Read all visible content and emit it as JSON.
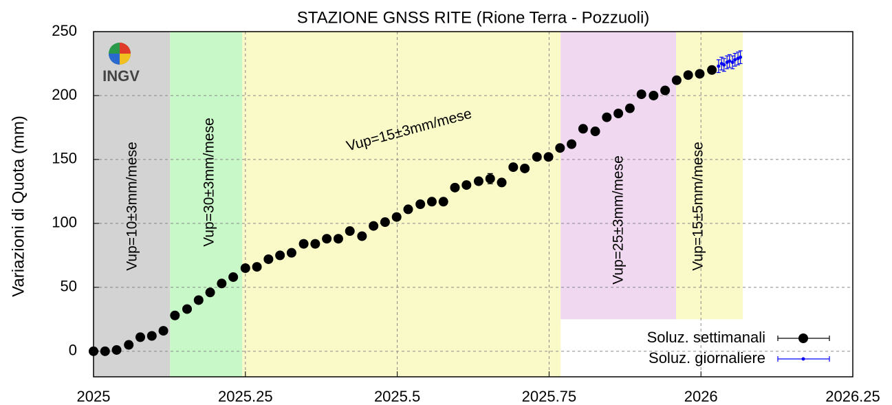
{
  "chart_data": {
    "type": "scatter",
    "title": "STAZIONE GNSS RITE (Rione Terra - Pozzuoli)",
    "y_label": "Variazioni di Quota (mm)",
    "logo_text": "INGV",
    "xlim": [
      2025,
      2026.25
    ],
    "xticks": [
      2025,
      2025.25,
      2025.5,
      2025.75,
      2026,
      2026.25
    ],
    "ylim": [
      -20,
      250
    ],
    "yticks": [
      0,
      50,
      100,
      150,
      200,
      250
    ],
    "grid": true,
    "legend": "lower right",
    "regions": [
      {
        "x": [
          2025,
          2025.126
        ],
        "y": [
          -20,
          250
        ],
        "color": "#d3d3d3"
      },
      {
        "x": [
          2025.126,
          2025.245
        ],
        "y": [
          -20,
          250
        ],
        "color": "#c8f8c8"
      },
      {
        "x": [
          2025.245,
          2025.769
        ],
        "y": [
          -20,
          250
        ],
        "color": "#fafac8"
      },
      {
        "x": [
          2025.769,
          2025.959
        ],
        "y": [
          25,
          250
        ],
        "color": "#f0d8f0"
      },
      {
        "x": [
          2025.959,
          2026.069
        ],
        "y": [
          25,
          250
        ],
        "color": "#fafac8"
      }
    ],
    "annotations": [
      "Vup=10±3mm/mese",
      "Vup=30±3mm/mese",
      "Vup=15±3mm/mese",
      "Vup=25±3mm/mese",
      "Vup=15±5mm/mese"
    ],
    "series": [
      {
        "name": "Soluz. settimanali",
        "color": "#000000",
        "x": [
          2025.0,
          2025.019,
          2025.038,
          2025.058,
          2025.077,
          2025.096,
          2025.115,
          2025.134,
          2025.154,
          2025.173,
          2025.192,
          2025.211,
          2025.23,
          2025.25,
          2025.269,
          2025.288,
          2025.307,
          2025.326,
          2025.346,
          2025.365,
          2025.384,
          2025.403,
          2025.422,
          2025.442,
          2025.461,
          2025.48,
          2025.499,
          2025.518,
          2025.538,
          2025.557,
          2025.576,
          2025.595,
          2025.614,
          2025.634,
          2025.653,
          2025.672,
          2025.691,
          2025.71,
          2025.73,
          2025.749,
          2025.768,
          2025.787,
          2025.806,
          2025.826,
          2025.845,
          2025.864,
          2025.883,
          2025.902,
          2025.922,
          2025.941,
          2025.96,
          2025.979,
          2025.998,
          2026.018
        ],
        "values": [
          0,
          0,
          1,
          5,
          11,
          12,
          16,
          28,
          33,
          40,
          46,
          53,
          58,
          65,
          66,
          72,
          75,
          77,
          84,
          84,
          88,
          88,
          94,
          90,
          98,
          101,
          105,
          111,
          115,
          117,
          117,
          128,
          130,
          133,
          135,
          132,
          144,
          143,
          152,
          152,
          159,
          162,
          174,
          172,
          183,
          186,
          190,
          201,
          200,
          204,
          212,
          216,
          217,
          220
        ],
        "errors": [
          2,
          2,
          2,
          2,
          2,
          2,
          2,
          2,
          2,
          2,
          2,
          2,
          2,
          2,
          2,
          2,
          2,
          2,
          2,
          2,
          2,
          2,
          2,
          2,
          2,
          2,
          2,
          2,
          2,
          2,
          2,
          2,
          2,
          2,
          4,
          2,
          2,
          2,
          2,
          2,
          2,
          2,
          2,
          2,
          2,
          2,
          2,
          2,
          2,
          2,
          2,
          2,
          2,
          2
        ]
      },
      {
        "name": "Soluz. giornaliere",
        "color": "#0000ff",
        "x": [
          2026.029,
          2026.034,
          2026.038,
          2026.043,
          2026.047,
          2026.052,
          2026.056,
          2026.061,
          2026.065
        ],
        "values": [
          223,
          225,
          224,
          226,
          227,
          226,
          228,
          229,
          230
        ],
        "errors": [
          5,
          5,
          5,
          5,
          5,
          5,
          5,
          5,
          5
        ]
      }
    ]
  }
}
